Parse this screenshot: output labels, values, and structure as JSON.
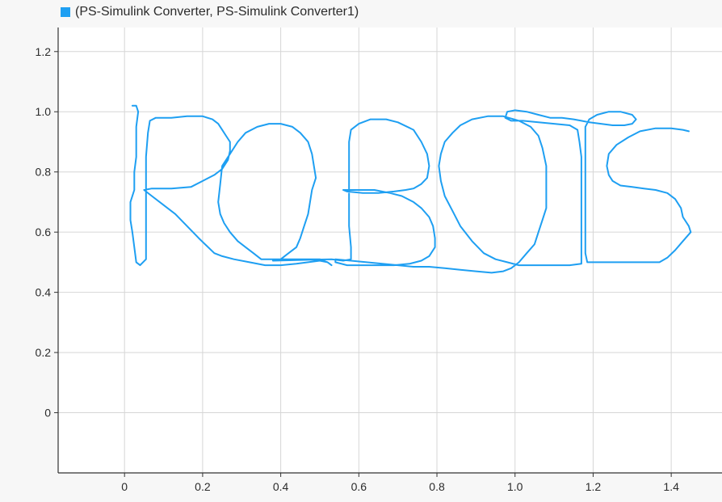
{
  "legend": {
    "label": "(PS-Simulink Converter, PS-Simulink Converter1)",
    "color": "#1e9ff2"
  },
  "chart_data": {
    "type": "line",
    "title": "",
    "xlabel": "",
    "ylabel": "",
    "xlim": [
      -0.17,
      1.53
    ],
    "ylim": [
      -0.2,
      1.28
    ],
    "grid": true,
    "legend_position": "top-left",
    "x_ticks": [
      0,
      0.2,
      0.4,
      0.6,
      0.8,
      1.0,
      1.2,
      1.4
    ],
    "x_tick_labels": [
      "0",
      "0.2",
      "0.4",
      "0.6",
      "0.8",
      "1.0",
      "1.2",
      "1.4"
    ],
    "y_ticks": [
      0,
      0.2,
      0.4,
      0.6,
      0.8,
      1.0,
      1.2
    ],
    "y_tick_labels": [
      "0",
      "0.2",
      "0.4",
      "0.6",
      "0.8",
      "1.0",
      "1.2"
    ],
    "series": [
      {
        "name": "(PS-Simulink Converter, PS-Simulink Converter1)",
        "color": "#1e9ff2",
        "points": [
          [
            0.02,
            1.02
          ],
          [
            0.03,
            1.02
          ],
          [
            0.035,
            1.0
          ],
          [
            0.03,
            0.95
          ],
          [
            0.03,
            0.85
          ],
          [
            0.025,
            0.8
          ],
          [
            0.025,
            0.74
          ],
          [
            0.015,
            0.7
          ],
          [
            0.015,
            0.64
          ],
          [
            0.02,
            0.6
          ],
          [
            0.025,
            0.55
          ],
          [
            0.03,
            0.5
          ],
          [
            0.04,
            0.49
          ],
          [
            0.055,
            0.51
          ],
          [
            0.055,
            0.56
          ],
          [
            0.055,
            0.65
          ],
          [
            0.055,
            0.75
          ],
          [
            0.055,
            0.85
          ],
          [
            0.06,
            0.93
          ],
          [
            0.065,
            0.97
          ],
          [
            0.08,
            0.98
          ],
          [
            0.12,
            0.98
          ],
          [
            0.16,
            0.985
          ],
          [
            0.2,
            0.985
          ],
          [
            0.225,
            0.975
          ],
          [
            0.24,
            0.96
          ],
          [
            0.25,
            0.94
          ],
          [
            0.26,
            0.92
          ],
          [
            0.27,
            0.9
          ],
          [
            0.27,
            0.87
          ],
          [
            0.265,
            0.84
          ],
          [
            0.25,
            0.81
          ],
          [
            0.23,
            0.79
          ],
          [
            0.2,
            0.77
          ],
          [
            0.17,
            0.75
          ],
          [
            0.12,
            0.745
          ],
          [
            0.07,
            0.745
          ],
          [
            0.05,
            0.74
          ],
          [
            0.07,
            0.72
          ],
          [
            0.1,
            0.69
          ],
          [
            0.13,
            0.66
          ],
          [
            0.16,
            0.62
          ],
          [
            0.19,
            0.58
          ],
          [
            0.21,
            0.555
          ],
          [
            0.23,
            0.53
          ],
          [
            0.25,
            0.52
          ],
          [
            0.28,
            0.51
          ],
          [
            0.32,
            0.5
          ],
          [
            0.36,
            0.49
          ],
          [
            0.4,
            0.49
          ],
          [
            0.44,
            0.495
          ],
          [
            0.47,
            0.5
          ],
          [
            0.5,
            0.505
          ],
          [
            0.52,
            0.5
          ],
          [
            0.53,
            0.49
          ],
          [
            0.53,
            0.49
          ],
          [
            0.52,
            0.5
          ],
          [
            0.5,
            0.51
          ],
          [
            0.47,
            0.51
          ],
          [
            0.44,
            0.51
          ],
          [
            0.41,
            0.51
          ],
          [
            0.38,
            0.51
          ],
          [
            0.35,
            0.51
          ],
          [
            0.33,
            0.53
          ],
          [
            0.31,
            0.55
          ],
          [
            0.29,
            0.57
          ],
          [
            0.27,
            0.6
          ],
          [
            0.255,
            0.63
          ],
          [
            0.245,
            0.66
          ],
          [
            0.24,
            0.7
          ],
          [
            0.245,
            0.76
          ],
          [
            0.25,
            0.82
          ],
          [
            0.27,
            0.86
          ],
          [
            0.29,
            0.9
          ],
          [
            0.31,
            0.93
          ],
          [
            0.34,
            0.95
          ],
          [
            0.37,
            0.96
          ],
          [
            0.4,
            0.96
          ],
          [
            0.43,
            0.95
          ],
          [
            0.45,
            0.93
          ],
          [
            0.47,
            0.9
          ],
          [
            0.48,
            0.86
          ],
          [
            0.485,
            0.82
          ],
          [
            0.49,
            0.78
          ],
          [
            0.48,
            0.74
          ],
          [
            0.475,
            0.7
          ],
          [
            0.47,
            0.66
          ],
          [
            0.46,
            0.62
          ],
          [
            0.45,
            0.58
          ],
          [
            0.44,
            0.55
          ],
          [
            0.42,
            0.53
          ],
          [
            0.4,
            0.51
          ],
          [
            0.38,
            0.505
          ],
          [
            0.53,
            0.51
          ],
          [
            0.56,
            0.505
          ],
          [
            0.58,
            0.51
          ],
          [
            0.58,
            0.55
          ],
          [
            0.575,
            0.62
          ],
          [
            0.575,
            0.72
          ],
          [
            0.575,
            0.82
          ],
          [
            0.575,
            0.9
          ],
          [
            0.58,
            0.94
          ],
          [
            0.6,
            0.96
          ],
          [
            0.63,
            0.975
          ],
          [
            0.67,
            0.975
          ],
          [
            0.7,
            0.965
          ],
          [
            0.74,
            0.94
          ],
          [
            0.76,
            0.9
          ],
          [
            0.775,
            0.86
          ],
          [
            0.78,
            0.82
          ],
          [
            0.775,
            0.78
          ],
          [
            0.76,
            0.76
          ],
          [
            0.74,
            0.745
          ],
          [
            0.72,
            0.74
          ],
          [
            0.69,
            0.735
          ],
          [
            0.65,
            0.73
          ],
          [
            0.61,
            0.73
          ],
          [
            0.57,
            0.735
          ],
          [
            0.56,
            0.74
          ],
          [
            0.6,
            0.74
          ],
          [
            0.64,
            0.74
          ],
          [
            0.68,
            0.73
          ],
          [
            0.71,
            0.72
          ],
          [
            0.74,
            0.7
          ],
          [
            0.76,
            0.68
          ],
          [
            0.78,
            0.65
          ],
          [
            0.79,
            0.62
          ],
          [
            0.795,
            0.58
          ],
          [
            0.795,
            0.55
          ],
          [
            0.78,
            0.52
          ],
          [
            0.76,
            0.505
          ],
          [
            0.73,
            0.495
          ],
          [
            0.69,
            0.49
          ],
          [
            0.65,
            0.49
          ],
          [
            0.61,
            0.49
          ],
          [
            0.57,
            0.49
          ],
          [
            0.54,
            0.5
          ],
          [
            0.54,
            0.51
          ],
          [
            0.58,
            0.505
          ],
          [
            0.62,
            0.5
          ],
          [
            0.66,
            0.495
          ],
          [
            0.7,
            0.49
          ],
          [
            0.74,
            0.485
          ],
          [
            0.78,
            0.485
          ],
          [
            0.82,
            0.48
          ],
          [
            0.86,
            0.475
          ],
          [
            0.9,
            0.47
          ],
          [
            0.94,
            0.465
          ],
          [
            0.97,
            0.47
          ],
          [
            0.99,
            0.48
          ],
          [
            1.01,
            0.5
          ],
          [
            1.03,
            0.53
          ],
          [
            1.05,
            0.56
          ],
          [
            1.06,
            0.6
          ],
          [
            1.07,
            0.64
          ],
          [
            1.08,
            0.68
          ],
          [
            1.08,
            0.75
          ],
          [
            1.08,
            0.82
          ],
          [
            1.07,
            0.88
          ],
          [
            1.06,
            0.92
          ],
          [
            1.04,
            0.95
          ],
          [
            1.01,
            0.97
          ],
          [
            0.97,
            0.985
          ],
          [
            0.93,
            0.985
          ],
          [
            0.89,
            0.975
          ],
          [
            0.86,
            0.955
          ],
          [
            0.84,
            0.93
          ],
          [
            0.82,
            0.9
          ],
          [
            0.81,
            0.86
          ],
          [
            0.805,
            0.82
          ],
          [
            0.81,
            0.77
          ],
          [
            0.82,
            0.72
          ],
          [
            0.84,
            0.67
          ],
          [
            0.86,
            0.62
          ],
          [
            0.89,
            0.57
          ],
          [
            0.92,
            0.53
          ],
          [
            0.95,
            0.51
          ],
          [
            0.98,
            0.5
          ],
          [
            1.01,
            0.49
          ],
          [
            1.05,
            0.49
          ],
          [
            1.1,
            0.49
          ],
          [
            1.14,
            0.49
          ],
          [
            1.17,
            0.495
          ],
          [
            1.17,
            0.495
          ],
          [
            1.17,
            0.55
          ],
          [
            1.17,
            0.62
          ],
          [
            1.17,
            0.7
          ],
          [
            1.17,
            0.78
          ],
          [
            1.17,
            0.85
          ],
          [
            1.165,
            0.9
          ],
          [
            1.16,
            0.94
          ],
          [
            1.14,
            0.955
          ],
          [
            1.1,
            0.96
          ],
          [
            1.06,
            0.965
          ],
          [
            1.02,
            0.97
          ],
          [
            0.99,
            0.97
          ],
          [
            0.975,
            0.98
          ],
          [
            0.98,
            1.0
          ],
          [
            1.0,
            1.005
          ],
          [
            1.03,
            1.0
          ],
          [
            1.06,
            0.99
          ],
          [
            1.09,
            0.98
          ],
          [
            1.12,
            0.98
          ],
          [
            1.15,
            0.975
          ],
          [
            1.17,
            0.97
          ],
          [
            1.19,
            0.965
          ],
          [
            1.22,
            0.96
          ],
          [
            1.25,
            0.955
          ],
          [
            1.28,
            0.955
          ],
          [
            1.3,
            0.96
          ],
          [
            1.31,
            0.975
          ],
          [
            1.3,
            0.99
          ],
          [
            1.27,
            1.0
          ],
          [
            1.24,
            1.0
          ],
          [
            1.21,
            0.99
          ],
          [
            1.19,
            0.975
          ],
          [
            1.18,
            0.95
          ],
          [
            1.18,
            0.9
          ],
          [
            1.18,
            0.8
          ],
          [
            1.18,
            0.7
          ],
          [
            1.18,
            0.6
          ],
          [
            1.18,
            0.53
          ],
          [
            1.185,
            0.5
          ],
          [
            1.22,
            0.5
          ],
          [
            1.26,
            0.5
          ],
          [
            1.3,
            0.5
          ],
          [
            1.34,
            0.5
          ],
          [
            1.37,
            0.5
          ],
          [
            1.39,
            0.515
          ],
          [
            1.41,
            0.54
          ],
          [
            1.43,
            0.57
          ],
          [
            1.45,
            0.6
          ],
          [
            1.445,
            0.62
          ],
          [
            1.43,
            0.65
          ],
          [
            1.425,
            0.68
          ],
          [
            1.41,
            0.71
          ],
          [
            1.39,
            0.73
          ],
          [
            1.36,
            0.74
          ],
          [
            1.33,
            0.745
          ],
          [
            1.3,
            0.75
          ],
          [
            1.27,
            0.755
          ],
          [
            1.25,
            0.77
          ],
          [
            1.24,
            0.79
          ],
          [
            1.235,
            0.82
          ],
          [
            1.24,
            0.86
          ],
          [
            1.26,
            0.89
          ],
          [
            1.29,
            0.915
          ],
          [
            1.32,
            0.935
          ],
          [
            1.36,
            0.945
          ],
          [
            1.4,
            0.945
          ],
          [
            1.43,
            0.94
          ],
          [
            1.445,
            0.935
          ]
        ]
      }
    ]
  }
}
